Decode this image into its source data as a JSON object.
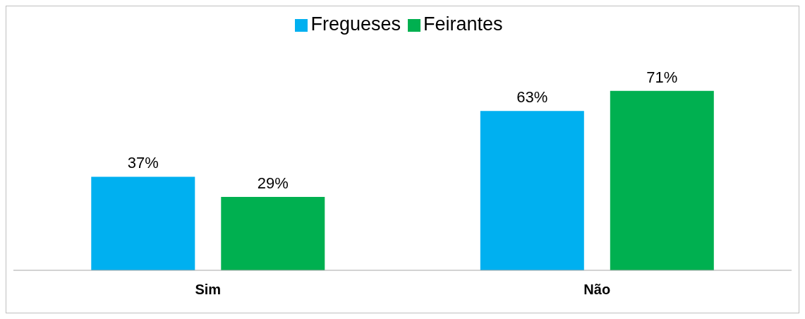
{
  "chart_data": {
    "type": "bar",
    "categories": [
      "Sim",
      "Não"
    ],
    "series": [
      {
        "name": "Fregueses",
        "color": "#00b0f0",
        "values": [
          37,
          63
        ],
        "value_labels": [
          "37%",
          "63%"
        ]
      },
      {
        "name": "Feirantes",
        "color": "#00b050",
        "values": [
          29,
          71
        ],
        "value_labels": [
          "29%",
          "71%"
        ]
      }
    ],
    "legend": "top",
    "grid": false
  }
}
